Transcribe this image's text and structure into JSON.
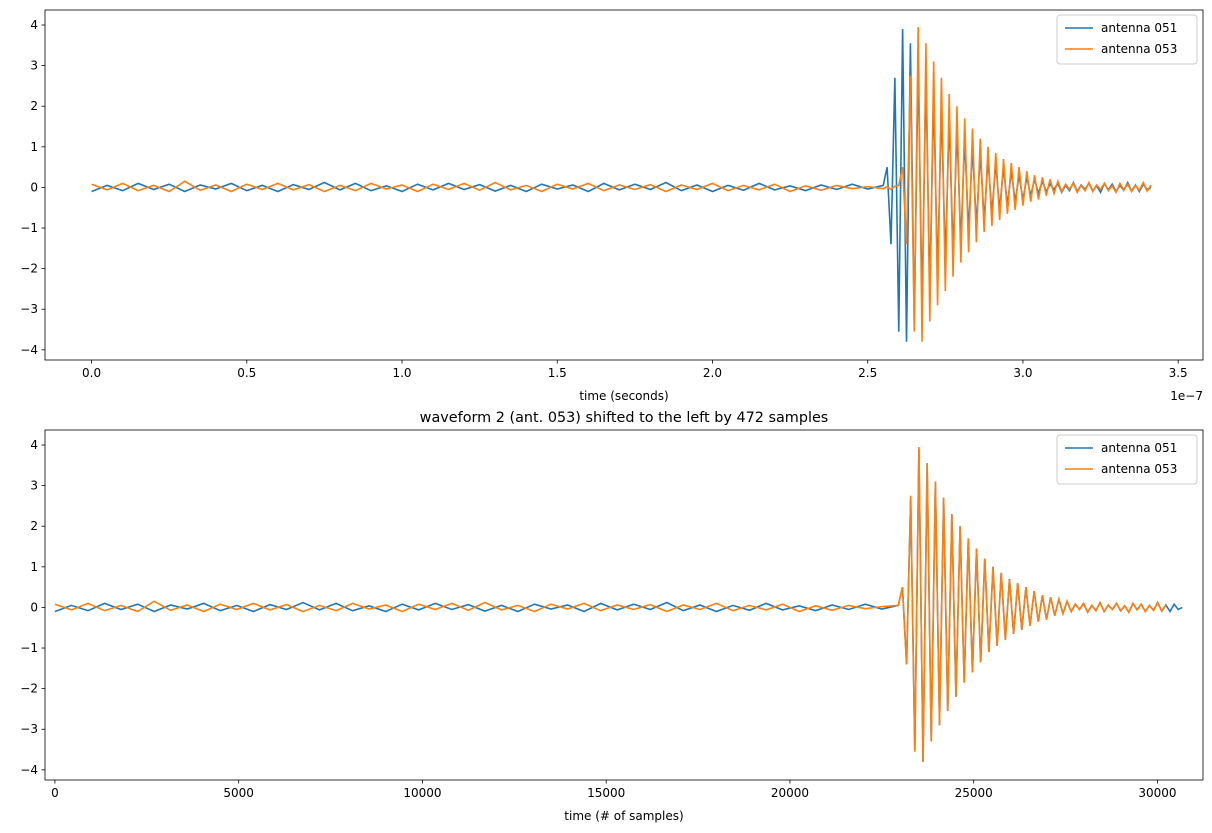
{
  "chart_data": [
    {
      "type": "line",
      "xlabel": "time (seconds)",
      "x_offset_label": "1e−7",
      "legend": "upper right",
      "xlim": [
        -0.15,
        3.58
      ],
      "ylim": [
        -4.25,
        4.37
      ],
      "xticks": [
        {
          "value": 0,
          "label": "0.0"
        },
        0.5,
        {
          "value": 1,
          "label": "1.0"
        },
        1.5,
        {
          "value": 2,
          "label": "2.0"
        },
        2.5,
        {
          "value": 3,
          "label": "3.0"
        },
        3.5
      ],
      "yticks": [
        {
          "value": -4,
          "label": "−4"
        },
        {
          "value": -3,
          "label": "−3"
        },
        {
          "value": -2,
          "label": "−2"
        },
        {
          "value": -1,
          "label": "−1"
        },
        0,
        1,
        2,
        3,
        4
      ],
      "x": [
        0,
        0.05,
        0.1,
        0.15,
        0.2,
        0.25,
        0.3,
        0.35,
        0.4,
        0.45,
        0.5,
        0.55,
        0.6,
        0.65,
        0.7,
        0.75,
        0.8,
        0.85,
        0.9,
        0.95,
        1,
        1.05,
        1.1,
        1.15,
        1.2,
        1.25,
        1.3,
        1.35,
        1.4,
        1.45,
        1.5,
        1.55,
        1.6,
        1.65,
        1.7,
        1.75,
        1.8,
        1.85,
        1.9,
        1.95,
        2,
        2.05,
        2.1,
        2.15,
        2.2,
        2.25,
        2.3,
        2.35,
        2.4,
        2.45,
        2.5,
        2.55,
        2.5625,
        2.575,
        2.5875,
        2.6,
        2.6125,
        2.625,
        2.6375,
        2.65,
        2.6625,
        2.675,
        2.6875,
        2.7,
        2.7125,
        2.725,
        2.7375,
        2.75,
        2.7625,
        2.775,
        2.7875,
        2.8,
        2.8125,
        2.825,
        2.8375,
        2.85,
        2.8625,
        2.875,
        2.8875,
        2.9,
        2.9125,
        2.925,
        2.9375,
        2.95,
        2.9625,
        2.975,
        2.9875,
        3,
        3.0125,
        3.025,
        3.0375,
        3.05,
        3.0625,
        3.075,
        3.0875,
        3.1,
        3.1125,
        3.125,
        3.1375,
        3.15,
        3.1625,
        3.175,
        3.1875,
        3.2,
        3.2125,
        3.225,
        3.2375,
        3.25,
        3.2625,
        3.275,
        3.2875,
        3.3,
        3.3125,
        3.325,
        3.3375,
        3.35,
        3.3625,
        3.375,
        3.3875,
        3.4,
        3.4125
      ],
      "series": [
        {
          "name": "antenna 051",
          "color": "#1f77b4",
          "values": [
            -0.1,
            0.05,
            -0.08,
            0.1,
            -0.05,
            0.08,
            -0.1,
            0.06,
            -0.04,
            0.1,
            -0.08,
            0.05,
            -0.1,
            0.07,
            -0.05,
            0.12,
            -0.06,
            0.1,
            -0.08,
            0.04,
            -0.1,
            0.08,
            -0.06,
            0.1,
            -0.05,
            0.07,
            -0.09,
            0.05,
            -0.1,
            0.08,
            -0.04,
            0.06,
            -0.1,
            0.1,
            -0.06,
            0.08,
            -0.05,
            0.12,
            -0.08,
            0.06,
            -0.1,
            0.05,
            -0.07,
            0.1,
            -0.06,
            0.04,
            -0.08,
            0.06,
            -0.05,
            0.08,
            -0.04,
            0.05,
            0.5,
            -1.4,
            2.7,
            -3.55,
            3.9,
            -3.8,
            3.55,
            -3.3,
            3.1,
            -2.9,
            2.7,
            -2.55,
            2.3,
            -2.2,
            2.0,
            -1.85,
            1.7,
            -1.6,
            1.45,
            -1.35,
            1.2,
            -1.1,
            1.0,
            -0.95,
            0.85,
            -0.8,
            0.7,
            -0.65,
            0.6,
            -0.55,
            0.5,
            -0.45,
            0.4,
            -0.35,
            0.3,
            -0.3,
            0.25,
            -0.2,
            0.2,
            -0.15,
            0.15,
            -0.1,
            0.08,
            -0.05,
            0.1,
            -0.12,
            0.05,
            -0.08,
            0.12,
            -0.1,
            0.06,
            -0.05,
            0.1,
            -0.08,
            0.04,
            -0.12,
            0.1,
            -0.06,
            0.08,
            -0.1,
            0.05,
            -0.07,
            0.12,
            -0.09,
            0.06,
            -0.1,
            0.08,
            -0.05,
            0.0
          ]
        },
        {
          "name": "antenna 053",
          "color": "#ff7f0e",
          "values": [
            0.08,
            -0.06,
            0.1,
            -0.08,
            0.05,
            -0.1,
            0.15,
            -0.07,
            0.06,
            -0.1,
            0.08,
            -0.05,
            0.1,
            -0.06,
            0.07,
            -0.1,
            0.05,
            -0.08,
            0.1,
            -0.04,
            0.06,
            -0.1,
            0.08,
            -0.05,
            0.1,
            -0.07,
            0.12,
            -0.06,
            0.05,
            -0.1,
            0.08,
            -0.04,
            0.1,
            -0.08,
            0.06,
            -0.05,
            0.07,
            -0.1,
            0.06,
            -0.05,
            0.1,
            -0.08,
            0.05,
            -0.06,
            0.08,
            -0.1,
            0.04,
            -0.07,
            0.05,
            -0.03,
            0.02,
            -0.03,
            0.02,
            -0.05,
            0.03,
            0.05,
            0.5,
            -1.4,
            2.75,
            -3.55,
            3.95,
            -3.8,
            3.55,
            -3.3,
            3.1,
            -2.9,
            2.7,
            -2.55,
            2.3,
            -2.2,
            2.0,
            -1.85,
            1.7,
            -1.6,
            1.45,
            -1.35,
            1.2,
            -1.1,
            1.0,
            -0.95,
            0.85,
            -0.8,
            0.7,
            -0.65,
            0.6,
            -0.55,
            0.5,
            -0.45,
            0.4,
            -0.35,
            0.3,
            -0.3,
            0.25,
            -0.2,
            0.2,
            -0.15,
            0.15,
            -0.1,
            0.08,
            -0.05,
            0.1,
            -0.12,
            0.05,
            -0.08,
            0.12,
            -0.1,
            0.06,
            -0.05,
            0.1,
            -0.08,
            0.04,
            -0.12,
            0.1,
            -0.06,
            0.08,
            -0.1,
            0.05,
            -0.07,
            0.12,
            -0.09,
            0.06
          ]
        }
      ]
    },
    {
      "type": "line",
      "title": "waveform 2 (ant. 053) shifted to the left by 472 samples",
      "xlabel": "time (# of samples)",
      "legend": "upper right",
      "xlim": [
        -270,
        31240
      ],
      "ylim": [
        -4.25,
        4.37
      ],
      "xticks": [
        0,
        5000,
        10000,
        15000,
        20000,
        25000,
        30000
      ],
      "yticks": [
        {
          "value": -4,
          "label": "−4"
        },
        {
          "value": -3,
          "label": "−3"
        },
        {
          "value": -2,
          "label": "−2"
        },
        {
          "value": -1,
          "label": "−1"
        },
        0,
        1,
        2,
        3,
        4
      ],
      "x": [
        0,
        450,
        900,
        1350,
        1800,
        2250,
        2700,
        3150,
        3600,
        4050,
        4500,
        4950,
        5400,
        5850,
        6300,
        6750,
        7200,
        7650,
        8100,
        8550,
        9000,
        9450,
        9900,
        10350,
        10800,
        11250,
        11700,
        12150,
        12600,
        13050,
        13500,
        13950,
        14400,
        14850,
        15300,
        15750,
        16200,
        16650,
        17100,
        17550,
        18000,
        18450,
        18900,
        19350,
        19800,
        20250,
        20700,
        21150,
        21600,
        22050,
        22500,
        22950,
        23062,
        23174,
        23286,
        23398,
        23510,
        23622,
        23734,
        23846,
        23958,
        24070,
        24182,
        24294,
        24406,
        24518,
        24630,
        24742,
        24854,
        24966,
        25078,
        25190,
        25302,
        25414,
        25526,
        25638,
        25750,
        25862,
        25974,
        26086,
        26198,
        26310,
        26422,
        26534,
        26646,
        26758,
        26870,
        26982,
        27094,
        27206,
        27318,
        27430,
        27542,
        27654,
        27766,
        27878,
        27990,
        28102,
        28214,
        28326,
        28438,
        28550,
        28662,
        28774,
        28886,
        28998,
        29110,
        29222,
        29334,
        29446,
        29558,
        29670,
        29782,
        29894,
        30006,
        30118,
        30230,
        30342,
        30454,
        30566,
        30678
      ],
      "series": [
        {
          "name": "antenna 051",
          "color": "#1f77b4",
          "values": [
            -0.1,
            0.05,
            -0.08,
            0.1,
            -0.05,
            0.08,
            -0.1,
            0.06,
            -0.04,
            0.1,
            -0.08,
            0.05,
            -0.1,
            0.07,
            -0.05,
            0.12,
            -0.06,
            0.1,
            -0.08,
            0.04,
            -0.1,
            0.08,
            -0.06,
            0.1,
            -0.05,
            0.07,
            -0.09,
            0.05,
            -0.1,
            0.08,
            -0.04,
            0.06,
            -0.1,
            0.1,
            -0.06,
            0.08,
            -0.05,
            0.12,
            -0.08,
            0.06,
            -0.1,
            0.05,
            -0.07,
            0.1,
            -0.06,
            0.04,
            -0.08,
            0.06,
            -0.05,
            0.08,
            -0.04,
            0.05,
            0.5,
            -1.4,
            2.7,
            -3.55,
            3.9,
            -3.8,
            3.55,
            -3.3,
            3.1,
            -2.9,
            2.7,
            -2.55,
            2.3,
            -2.2,
            2.0,
            -1.85,
            1.7,
            -1.6,
            1.45,
            -1.35,
            1.2,
            -1.1,
            1.0,
            -0.95,
            0.85,
            -0.8,
            0.7,
            -0.65,
            0.6,
            -0.55,
            0.5,
            -0.45,
            0.4,
            -0.35,
            0.3,
            -0.3,
            0.25,
            -0.2,
            0.2,
            -0.15,
            0.15,
            -0.1,
            0.08,
            -0.05,
            0.1,
            -0.12,
            0.05,
            -0.08,
            0.12,
            -0.1,
            0.06,
            -0.05,
            0.1,
            -0.08,
            0.04,
            -0.12,
            0.1,
            -0.06,
            0.08,
            -0.1,
            0.05,
            -0.07,
            0.12,
            -0.09,
            0.06,
            -0.1,
            0.08,
            -0.05,
            0.0
          ]
        },
        {
          "name": "antenna 053",
          "color": "#ff7f0e",
          "values": [
            0.08,
            -0.06,
            0.1,
            -0.08,
            0.05,
            -0.1,
            0.15,
            -0.07,
            0.06,
            -0.1,
            0.08,
            -0.05,
            0.1,
            -0.06,
            0.07,
            -0.1,
            0.05,
            -0.08,
            0.1,
            -0.04,
            0.06,
            -0.1,
            0.08,
            -0.05,
            0.1,
            -0.07,
            0.12,
            -0.06,
            0.05,
            -0.1,
            0.08,
            -0.04,
            0.1,
            -0.08,
            0.06,
            -0.05,
            0.07,
            -0.1,
            0.06,
            -0.05,
            0.1,
            -0.08,
            0.05,
            -0.06,
            0.08,
            -0.1,
            0.04,
            -0.07,
            0.05,
            -0.03,
            0.02,
            0.05,
            0.5,
            -1.4,
            2.75,
            -3.55,
            3.95,
            -3.8,
            3.55,
            -3.3,
            3.1,
            -2.9,
            2.7,
            -2.55,
            2.3,
            -2.2,
            2.0,
            -1.85,
            1.7,
            -1.6,
            1.45,
            -1.35,
            1.2,
            -1.1,
            1.0,
            -0.95,
            0.85,
            -0.8,
            0.7,
            -0.65,
            0.6,
            -0.55,
            0.5,
            -0.45,
            0.4,
            -0.35,
            0.3,
            -0.3,
            0.25,
            -0.2,
            0.2,
            -0.15,
            0.15,
            -0.1,
            0.08,
            -0.05,
            0.1,
            -0.12,
            0.05,
            -0.08,
            0.12,
            -0.1,
            0.06,
            -0.05,
            0.1,
            -0.08,
            0.04,
            -0.12,
            0.1,
            -0.06,
            0.08,
            -0.1,
            0.05,
            -0.07,
            0.12,
            -0.09,
            0.06,
            null,
            null,
            null,
            null
          ]
        }
      ]
    }
  ]
}
